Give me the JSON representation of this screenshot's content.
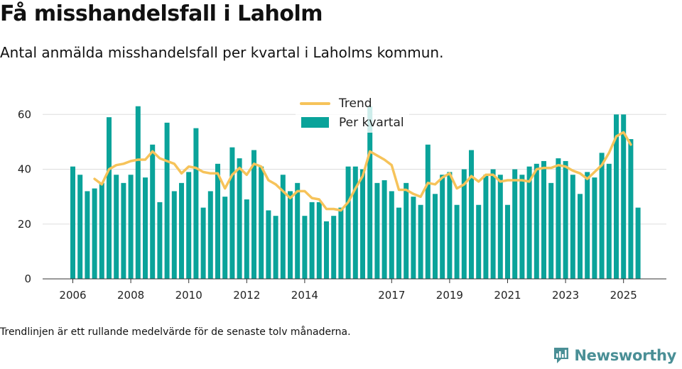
{
  "title": "Få misshandelsfall i Laholm",
  "subtitle": "Antal anmälda misshandelsfall per kvartal i Laholms kommun.",
  "footnote": "Trendlinjen är ett rullande medelvärde för de senaste tolv månaderna.",
  "brand": "Newsworthy",
  "colors": {
    "bars": "#0aa39a",
    "trend": "#f6c35a",
    "grid": "#dddddd",
    "brand": "#4a8f96"
  },
  "chart_data": {
    "type": "bar",
    "title": "Få misshandelsfall i Laholm",
    "xlabel": "",
    "ylabel": "",
    "ylim": [
      0,
      65
    ],
    "yticks": [
      0,
      20,
      40,
      60
    ],
    "grid": true,
    "legend": {
      "position": "top-center",
      "entries": [
        "Trend",
        "Per kvartal"
      ]
    },
    "xtick_labels": [
      {
        "label": "2006",
        "index": 0
      },
      {
        "label": "2008",
        "index": 8
      },
      {
        "label": "2010",
        "index": 16
      },
      {
        "label": "2012",
        "index": 24
      },
      {
        "label": "2014",
        "index": 32
      },
      {
        "label": "2017",
        "index": 44
      },
      {
        "label": "2019",
        "index": 52
      },
      {
        "label": "2021",
        "index": 60
      },
      {
        "label": "2023",
        "index": 68
      },
      {
        "label": "2025",
        "index": 76
      }
    ],
    "series": [
      {
        "name": "Per kvartal",
        "kind": "bar",
        "values": [
          41,
          38,
          32,
          33,
          35,
          59,
          38,
          35,
          38,
          63,
          37,
          49,
          28,
          57,
          32,
          35,
          39,
          55,
          26,
          32,
          42,
          30,
          48,
          44,
          29,
          47,
          41,
          25,
          23,
          38,
          32,
          35,
          23,
          28,
          28,
          21,
          23,
          26,
          41,
          41,
          40,
          63,
          35,
          36,
          32,
          26,
          35,
          30,
          27,
          49,
          31,
          38,
          39,
          27,
          40,
          47,
          27,
          38,
          40,
          38,
          27,
          40,
          38,
          41,
          42,
          43,
          35,
          44,
          43,
          38,
          31,
          39,
          37,
          46,
          42,
          60,
          60,
          51,
          26
        ]
      },
      {
        "name": "Trend",
        "kind": "line",
        "start_index": 3,
        "values": [
          36.5,
          34.5,
          40,
          41.5,
          42,
          43,
          43.5,
          43.5,
          46.5,
          44,
          43,
          42,
          38.5,
          41,
          40.5,
          39,
          38.5,
          38.5,
          33,
          38,
          40.5,
          38,
          42,
          41,
          36,
          34.5,
          32,
          29.5,
          32,
          32,
          29.5,
          29,
          25.5,
          25.5,
          25,
          28,
          33,
          37.5,
          46.5,
          45,
          43.5,
          41.5,
          32.5,
          32.5,
          31,
          30,
          35,
          34.5,
          37,
          38.5,
          33,
          34.5,
          37.5,
          35.5,
          38,
          38,
          35.5,
          36,
          36,
          36,
          35.5,
          40,
          40.5,
          40.5,
          41.5,
          41,
          39.5,
          38.5,
          36.5,
          39,
          41.5,
          46,
          52,
          53.5,
          49
        ]
      }
    ]
  }
}
